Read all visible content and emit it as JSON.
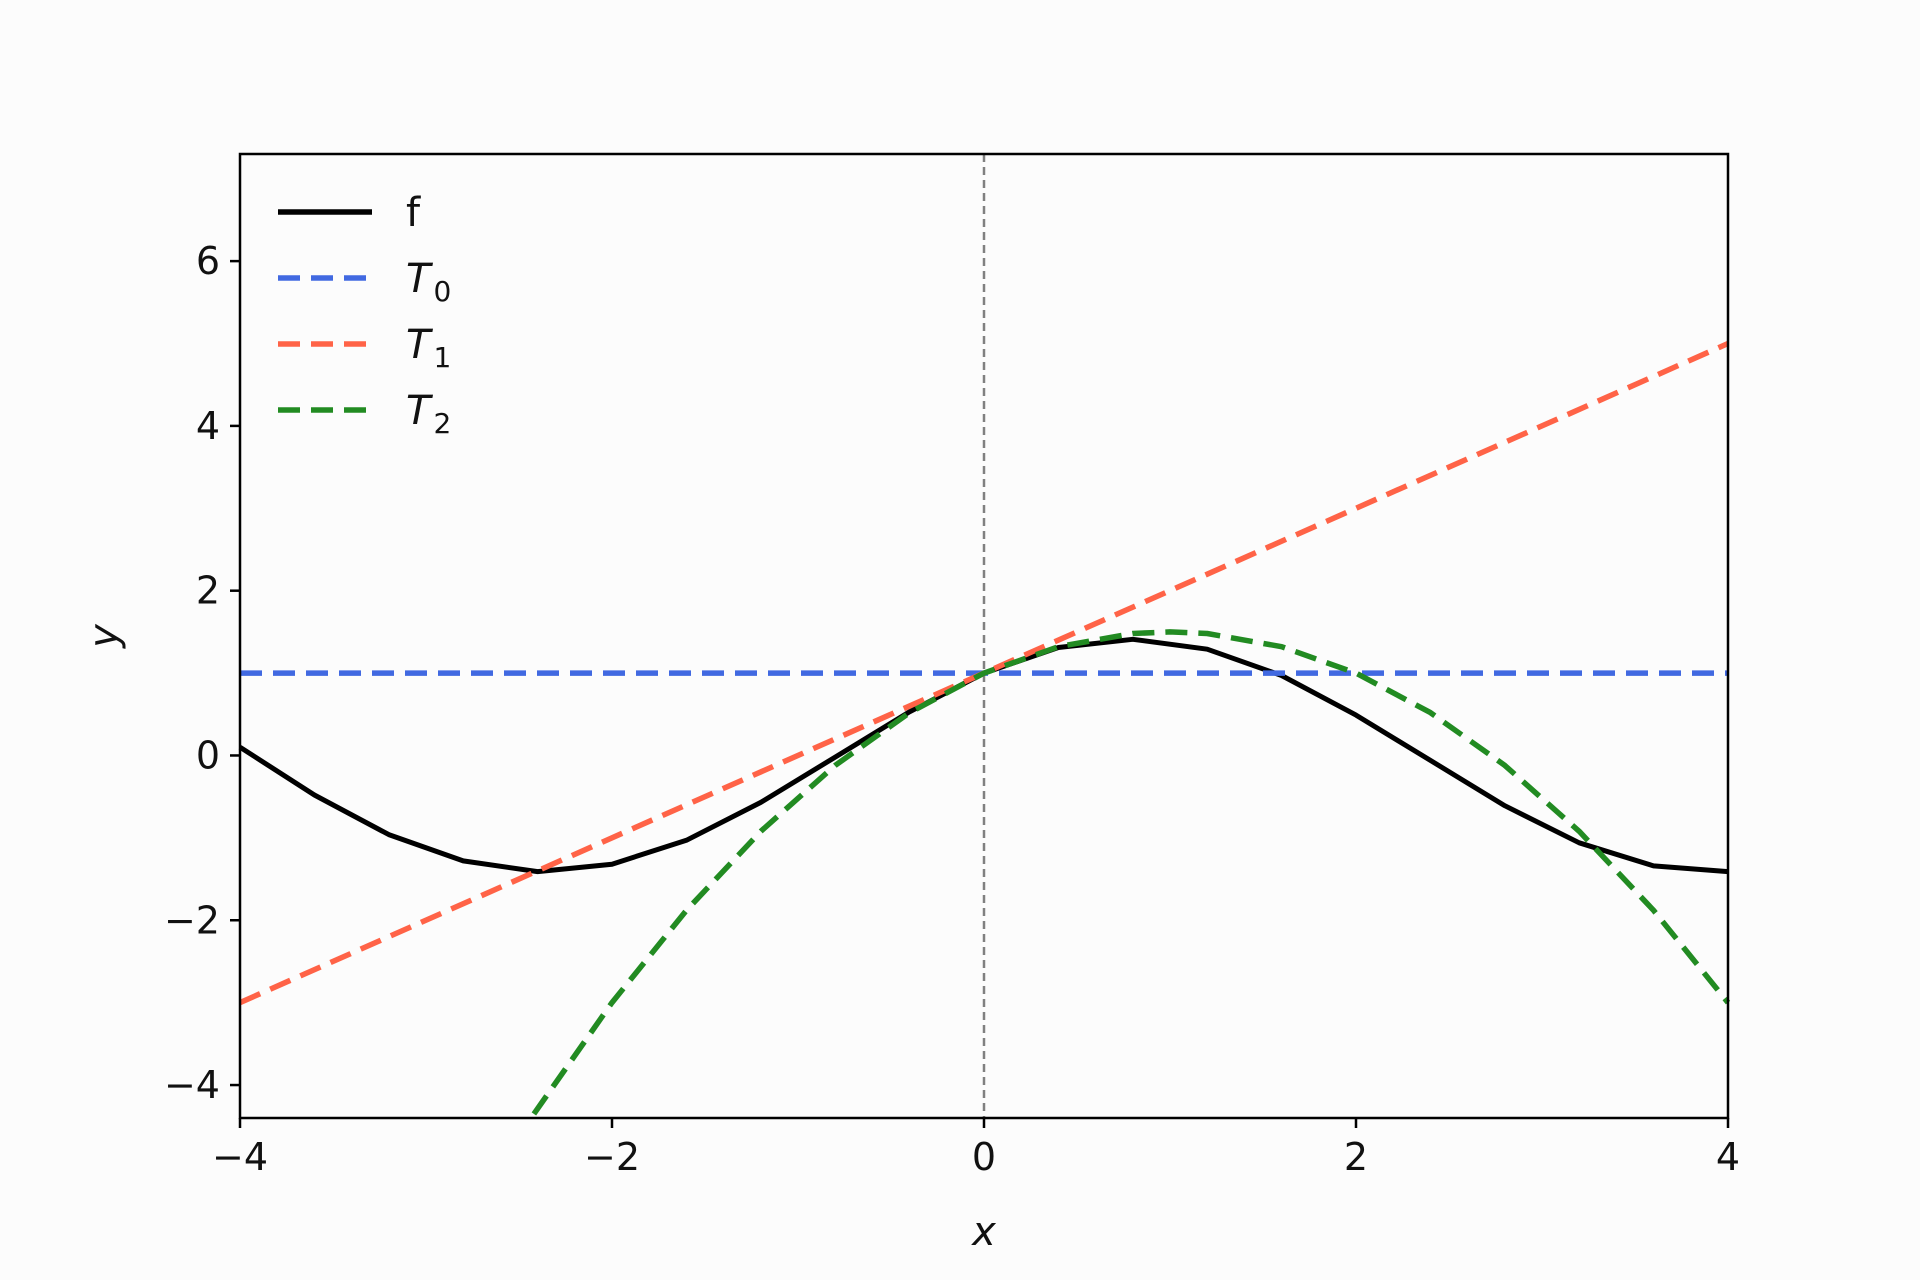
{
  "chart_data": {
    "type": "line",
    "xlabel": "x",
    "ylabel": "y",
    "xlim": [
      -4,
      4
    ],
    "ylim": [
      -4.4,
      7.3
    ],
    "x_ticks": [
      -4,
      -2,
      0,
      2,
      4
    ],
    "y_ticks": [
      -4,
      -2,
      0,
      2,
      4,
      6
    ],
    "x_tick_labels": [
      "−4",
      "−2",
      "0",
      "2",
      "4"
    ],
    "y_tick_labels": [
      "−4",
      "−2",
      "0",
      "2",
      "4",
      "6"
    ],
    "grid": false,
    "legend_position": "top-left",
    "reference_line": {
      "axis": "x",
      "value": 0,
      "style": "dashed",
      "color": "#808080"
    },
    "series": [
      {
        "name": "f",
        "style": "solid",
        "color": "#000000",
        "x": [
          -4.0,
          -3.6,
          -3.2,
          -2.8,
          -2.4,
          -2.0,
          -1.6,
          -1.2,
          -0.8,
          -0.4,
          0.0,
          0.4,
          0.8,
          1.2,
          1.6,
          2.0,
          2.4,
          2.8,
          3.2,
          3.6,
          4.0
        ],
        "y": [
          0.1,
          -0.48,
          -0.96,
          -1.28,
          -1.41,
          -1.32,
          -1.03,
          -0.57,
          -0.02,
          0.53,
          1.0,
          1.31,
          1.41,
          1.29,
          0.97,
          0.49,
          -0.06,
          -0.61,
          -1.06,
          -1.34,
          -1.41
        ]
      },
      {
        "name": "T",
        "subscript": "0",
        "style": "dashed",
        "color": "#4169e1",
        "x": [
          -4,
          4
        ],
        "y": [
          1,
          1
        ]
      },
      {
        "name": "T",
        "subscript": "1",
        "style": "dashed",
        "color": "#ff6347",
        "x": [
          -4,
          4
        ],
        "y": [
          -3,
          5
        ]
      },
      {
        "name": "T",
        "subscript": "2",
        "style": "dashed",
        "color": "#228b22",
        "x": [
          -2.42,
          -2.0,
          -1.6,
          -1.2,
          -0.8,
          -0.4,
          0.0,
          0.4,
          0.8,
          1.0,
          1.2,
          1.6,
          2.0,
          2.4,
          2.8,
          3.2,
          3.6,
          4.0
        ],
        "y": [
          -4.35,
          -3.0,
          -1.88,
          -0.92,
          -0.12,
          0.52,
          1.0,
          1.32,
          1.48,
          1.5,
          1.48,
          1.32,
          1.0,
          0.52,
          -0.12,
          -0.92,
          -1.88,
          -3.0
        ]
      }
    ]
  }
}
